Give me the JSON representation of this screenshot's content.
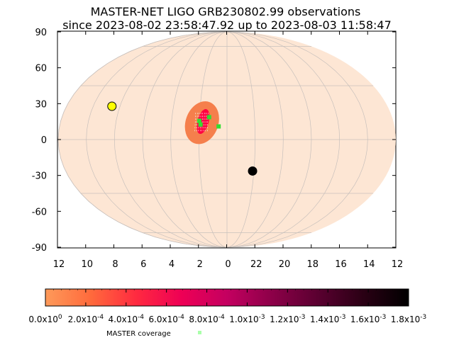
{
  "chart_data": {
    "type": "scatter",
    "projection": "aitoff-hammer (sky map)",
    "title": "MASTER-NET LIGO GRB230802.99 observations",
    "subtitle": "since 2023-08-02 23:58:47.92 up to 2023-08-03 11:58:47",
    "y_ticks": [
      "90",
      "60",
      "30",
      "0",
      "-30",
      "-60",
      "-90"
    ],
    "y_tick_values": [
      90,
      60,
      30,
      0,
      -30,
      -60,
      -90
    ],
    "x_ticks": [
      "12",
      "10",
      "8",
      "6",
      "4",
      "2",
      "0",
      "22",
      "20",
      "18",
      "16",
      "14",
      "12"
    ],
    "x_tick_values": [
      12,
      10,
      8,
      6,
      4,
      2,
      0,
      22,
      20,
      18,
      16,
      14,
      12
    ],
    "ra_range_hours": [
      12,
      12
    ],
    "dec_range_deg": [
      -90,
      90
    ],
    "grid": true,
    "sky_color": "#fde6d4",
    "probability_region": {
      "outer_color": "#f57f4c",
      "inner_color": "#ff0040",
      "center_ra_h": 1.8,
      "center_dec_deg": 9
    },
    "sun": {
      "ra_h": 8.6,
      "dec_deg": 18,
      "color": "#ffff00"
    },
    "moon": {
      "ra_h": 22.1,
      "dec_deg": -17,
      "color": "#000000"
    },
    "coverage_points": [
      {
        "ra_h": 1.9,
        "dec_deg": 8
      },
      {
        "ra_h": 2.0,
        "dec_deg": 10
      },
      {
        "ra_h": 1.3,
        "dec_deg": 12
      },
      {
        "ra_h": 0.6,
        "dec_deg": 7
      }
    ],
    "coverage_color": "#33dd33",
    "colorbar": {
      "labels_mantissa": [
        "0.0x10",
        "2.0x10",
        "4.0x10",
        "6.0x10",
        "8.0x10",
        "1.0x10",
        "1.2x10",
        "1.4x10",
        "1.6x10",
        "1.8x10"
      ],
      "labels_exponent": [
        "0",
        "-4",
        "-4",
        "-4",
        "-4",
        "-3",
        "-3",
        "-3",
        "-3",
        "-3"
      ],
      "values": [
        0.0,
        0.0002,
        0.0004,
        0.0006,
        0.0008,
        0.001,
        0.0012,
        0.0014,
        0.0016,
        0.0018
      ],
      "colors": [
        "#fe9a5a",
        "#ff6a3c",
        "#ff2a40",
        "#ee0055",
        "#c40060",
        "#8c0048",
        "#5a0030",
        "#2a0014",
        "#000000"
      ]
    },
    "legend": {
      "label": "MASTER coverage",
      "marker_color": "#aaffaa"
    }
  }
}
